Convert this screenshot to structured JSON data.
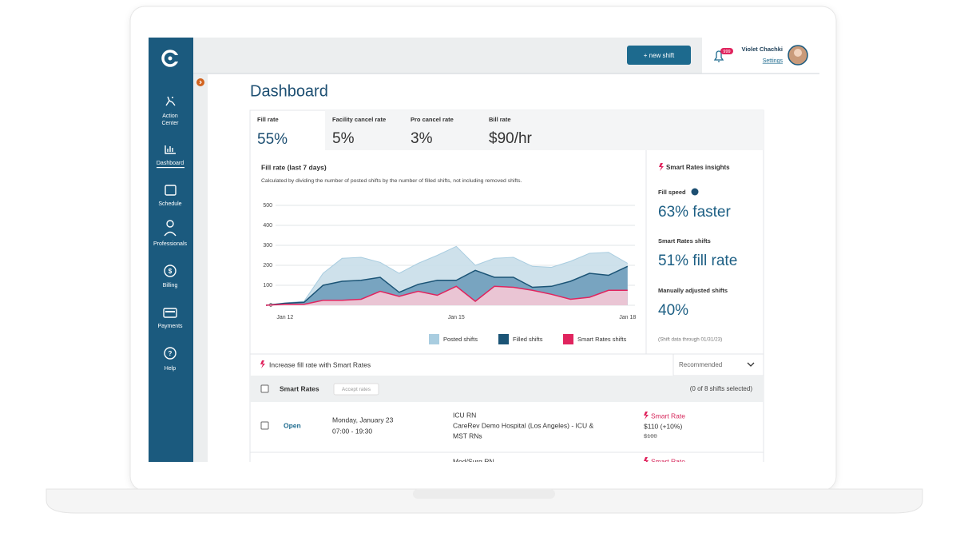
{
  "sidebar": {
    "nav": [
      [
        "Action",
        "Center"
      ],
      [
        "Dashboard"
      ],
      [
        "Schedule"
      ],
      [
        "Professionals"
      ],
      [
        "Billing"
      ],
      [
        "Payments"
      ],
      [
        "Help"
      ]
    ]
  },
  "topbar": {
    "button": "+ new shift",
    "badge": "999",
    "user": "Violet Chachki",
    "settings": "Settings"
  },
  "page_title": "Dashboard",
  "tabs": [
    {
      "label": "Fill rate",
      "value": "55%"
    },
    {
      "label": "Facility cancel rate",
      "value": "5%"
    },
    {
      "label": "Pro cancel rate",
      "value": "3%"
    },
    {
      "label": "Bill rate",
      "value": "$90/hr"
    }
  ],
  "chart_data": {
    "type": "area",
    "title": "Fill rate (last 7 days)",
    "subtitle": "Calculated by dividing the number of posted shifts by the number of filled shifts, not including removed shifts.",
    "categories": [
      null,
      "Jan 12",
      null,
      null,
      null,
      null,
      null,
      null,
      null,
      null,
      "Jan 15",
      null,
      null,
      null,
      null,
      null,
      null,
      null,
      null,
      "Jan 18"
    ],
    "series": [
      {
        "name": "Posted shifts",
        "color": "#a9cde0",
        "values": [
          0,
          12,
          20,
          160,
          235,
          240,
          215,
          160,
          210,
          250,
          295,
          200,
          235,
          240,
          195,
          190,
          220,
          260,
          265,
          210
        ]
      },
      {
        "name": "Filled shifts",
        "color": "#1b5476",
        "values": [
          0,
          10,
          15,
          100,
          120,
          125,
          140,
          65,
          105,
          125,
          125,
          175,
          140,
          140,
          90,
          95,
          120,
          160,
          150,
          195
        ]
      },
      {
        "name": "Smart Rates shifts",
        "color": "#e0245e",
        "values": [
          0,
          5,
          5,
          25,
          25,
          30,
          70,
          45,
          70,
          50,
          95,
          20,
          95,
          90,
          75,
          55,
          30,
          40,
          75,
          75
        ]
      }
    ],
    "ylim": [
      0,
      500
    ],
    "yticks": [
      0,
      100,
      200,
      300,
      400,
      500
    ],
    "grid": true
  },
  "insights": {
    "title": "Smart Rates insights",
    "items": [
      {
        "label": "Fill speed",
        "value": "63% faster"
      },
      {
        "label": "Smart Rates shifts",
        "value": "51% fill rate"
      },
      {
        "label": "Manually adjusted shifts",
        "value": "40%"
      }
    ],
    "note": "(Shift data through 01/31/23)"
  },
  "table": {
    "heading": "Increase fill rate with Smart Rates",
    "sort": "Recommended",
    "group": "Smart Rates",
    "accept": "Accept rates",
    "selected": "(0 of 8 shifts selected)",
    "rows": [
      {
        "status": "Open",
        "date": "Monday, January 23",
        "time": "07:00 - 19:30",
        "role": "ICU RN",
        "facility": [
          "CareRev Demo Hospital (Los Angeles) - ICU &",
          "MST RNs"
        ],
        "tag": "Smart Rate",
        "rate": "$110 (+10%)",
        "old_rate": "$100"
      },
      {
        "role": "Med/Surg RN",
        "tag": "Smart Rate"
      }
    ]
  }
}
